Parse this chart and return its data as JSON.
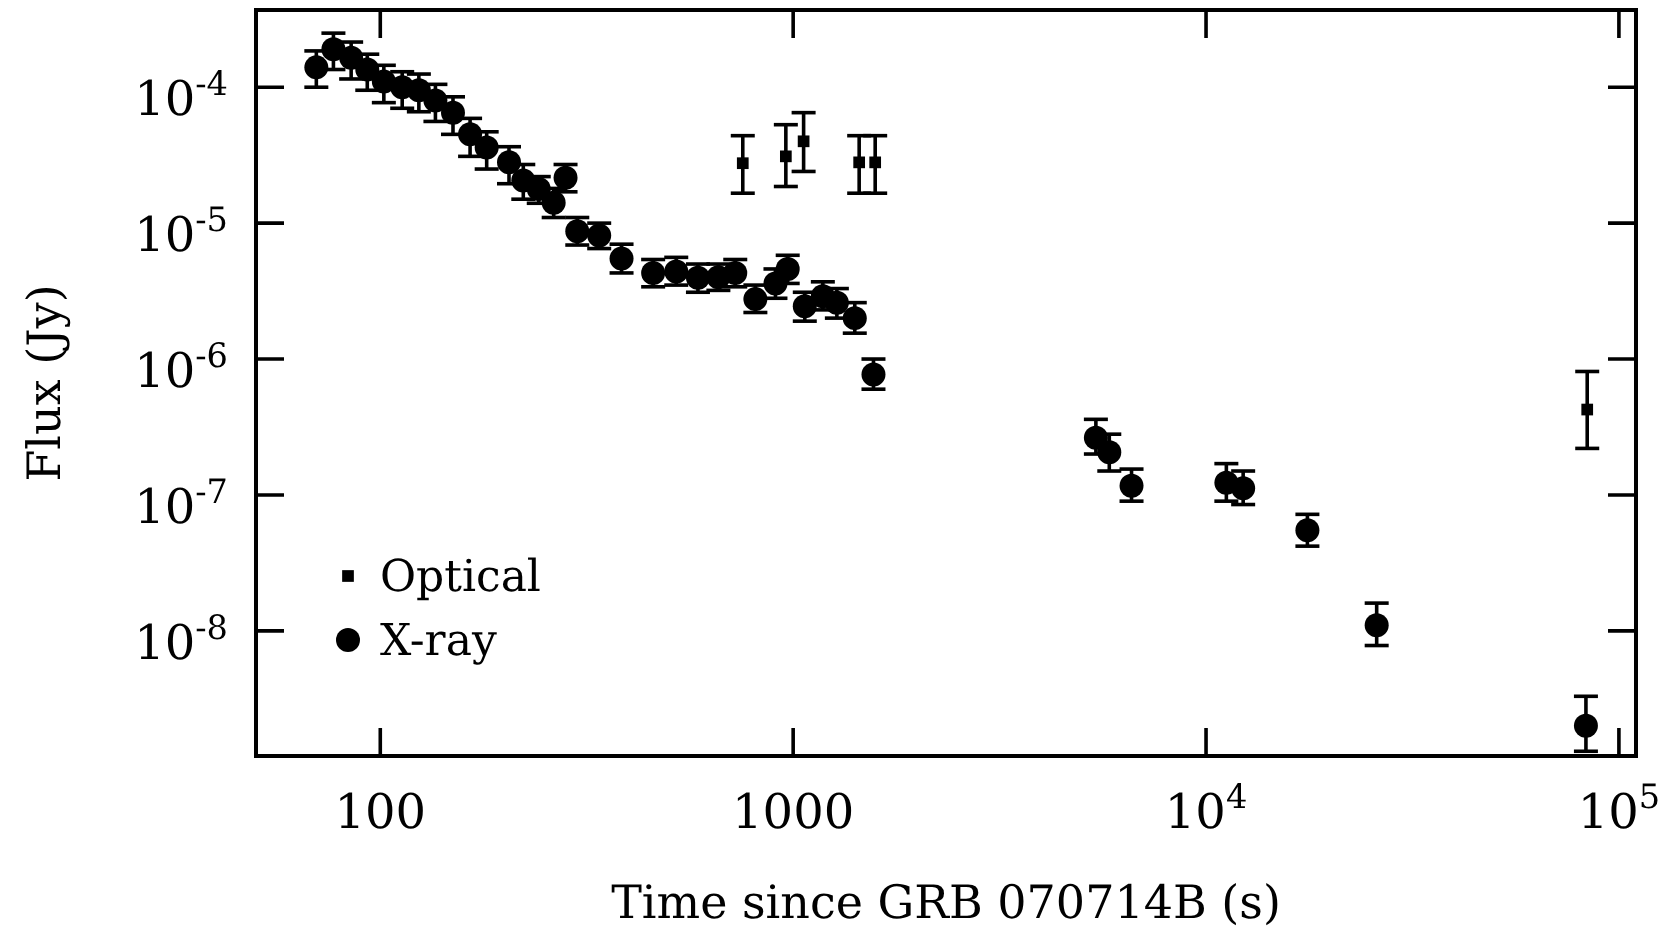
{
  "chart_data": {
    "type": "scatter",
    "xlabel": "Time since GRB 070714B (s)",
    "ylabel": "Flux (Jy)",
    "log": "xy",
    "legend": "bottom left",
    "grid": false,
    "xlim": [
      50,
      110000
    ],
    "ylim": [
      1.2e-09,
      0.00037
    ],
    "xticks": [
      100,
      1000,
      {
        "value": 10000,
        "label": "10$^{4}$"
      },
      {
        "value": 100000,
        "label": "10$^{5}$"
      }
    ],
    "yticks": [
      {
        "value": 1e-08,
        "label": "10$^{-8}$"
      },
      {
        "value": 1e-07,
        "label": "10$^{-7}$"
      },
      {
        "value": 1e-06,
        "label": "10$^{-6}$"
      },
      {
        "value": 1e-05,
        "label": "10$^{-5}$"
      },
      {
        "value": 0.0001,
        "label": "10$^{-4}$"
      }
    ],
    "series": [
      {
        "name": "Optical",
        "color": "#000000",
        "marker": "square",
        "x": [
          755,
          960,
          1060,
          1445,
          1580,
          83800
        ],
        "values": [
          2.76e-05,
          3.1e-05,
          4e-05,
          2.8e-05,
          2.8e-05,
          4.25e-07
        ],
        "errors": [
          [
            1.66e-05,
            4.4e-05
          ],
          [
            1.86e-05,
            5.3e-05
          ],
          [
            2.4e-05,
            6.5e-05
          ],
          [
            1.66e-05,
            4.4e-05
          ],
          [
            1.66e-05,
            4.4e-05
          ],
          [
            2.2e-07,
            8.1e-07
          ]
        ]
      },
      {
        "name": "X-ray",
        "color": "#000000",
        "marker": "circle",
        "x": [
          70,
          77,
          85,
          93,
          102,
          113,
          124,
          136,
          150,
          165,
          181,
          205,
          222,
          242,
          263,
          281,
          300,
          339,
          384,
          458,
          521,
          588,
          659,
          724,
          810,
          906,
          970,
          1067,
          1180,
          1276,
          1410,
          1565,
          5410,
          5830,
          6600,
          11200,
          12300,
          17600,
          25900,
          83200
        ],
        "values": [
          0.00014,
          0.00019,
          0.000165,
          0.000135,
          0.00011,
          0.0001,
          9.5e-05,
          8e-05,
          6.5e-05,
          4.5e-05,
          3.6e-05,
          2.8e-05,
          2.06e-05,
          1.78e-05,
          1.41e-05,
          2.16e-05,
          8.7e-06,
          8.1e-06,
          5.5e-06,
          4.3e-06,
          4.4e-06,
          3.97e-06,
          4e-06,
          4.3e-06,
          2.76e-06,
          3.6e-06,
          4.6e-06,
          2.45e-06,
          2.9e-06,
          2.6e-06,
          2e-06,
          7.7e-07,
          2.64e-07,
          2.06e-07,
          1.17e-07,
          1.23e-07,
          1.12e-07,
          5.5e-08,
          1.1e-08,
          2e-09
        ],
        "errors": [
          [
            0.0001,
            0.000185
          ],
          [
            0.000135,
            0.00025
          ],
          [
            0.000115,
            0.000215
          ],
          [
            9.5e-05,
            0.000175
          ],
          [
            7.7e-05,
            0.000145
          ],
          [
            7e-05,
            0.00013
          ],
          [
            6.6e-05,
            0.000125
          ],
          [
            5.6e-05,
            0.000105
          ],
          [
            4.5e-05,
            8.5e-05
          ],
          [
            3.1e-05,
            5.9e-05
          ],
          [
            2.5e-05,
            4.7e-05
          ],
          [
            1.95e-05,
            3.65e-05
          ],
          [
            1.5e-05,
            2.7e-05
          ],
          [
            1.4e-05,
            2.2e-05
          ],
          [
            1.1e-05,
            1.8e-05
          ],
          [
            1.7e-05,
            2.7e-05
          ],
          [
            6.9e-06,
            1.1e-05
          ],
          [
            6.5e-06,
            1e-05
          ],
          [
            4.3e-06,
            7e-06
          ],
          [
            3.4e-06,
            5.4e-06
          ],
          [
            3.5e-06,
            5.6e-06
          ],
          [
            3.1e-06,
            5e-06
          ],
          [
            3.2e-06,
            5e-06
          ],
          [
            3.4e-06,
            5.4e-06
          ],
          [
            2.2e-06,
            3.5e-06
          ],
          [
            2.8e-06,
            4.6e-06
          ],
          [
            3.6e-06,
            5.8e-06
          ],
          [
            1.9e-06,
            3.1e-06
          ],
          [
            2.3e-06,
            3.7e-06
          ],
          [
            2e-06,
            3.3e-06
          ],
          [
            1.55e-06,
            2.6e-06
          ],
          [
            6e-07,
            1e-06
          ],
          [
            2e-07,
            3.6e-07
          ],
          [
            1.5e-07,
            2.8e-07
          ],
          [
            9e-08,
            1.55e-07
          ],
          [
            9e-08,
            1.7e-07
          ],
          [
            8.5e-08,
            1.5e-07
          ],
          [
            4.2e-08,
            7.2e-08
          ],
          [
            7.8e-09,
            1.6e-08
          ],
          [
            1.3e-09,
            3.3e-09
          ]
        ]
      }
    ]
  }
}
